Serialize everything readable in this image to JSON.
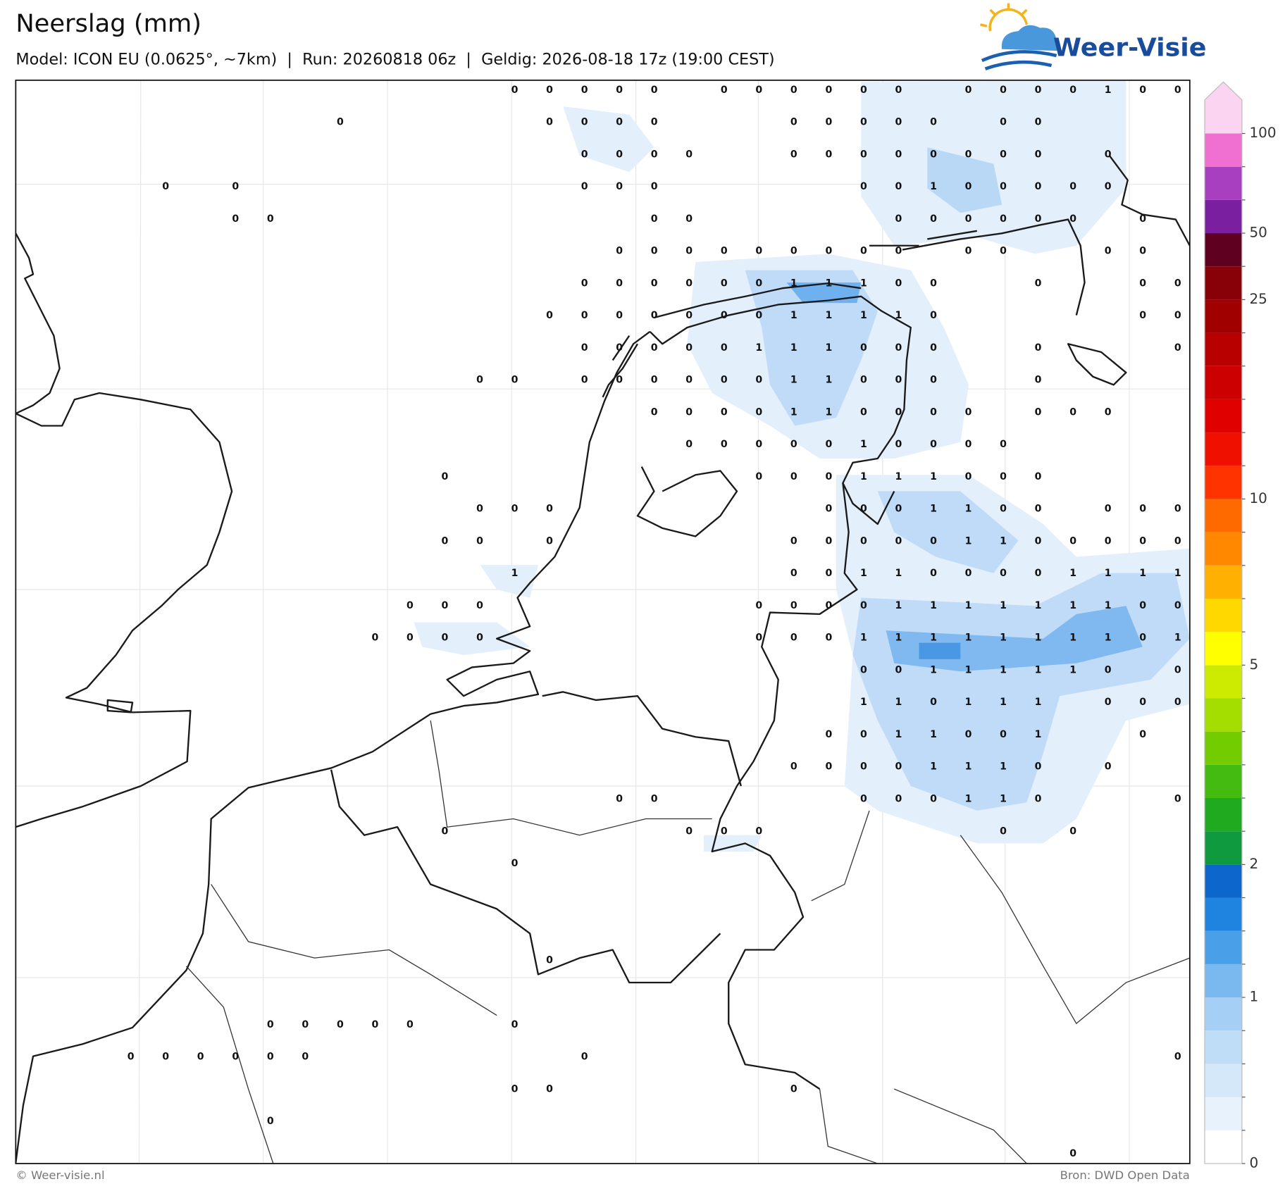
{
  "header": {
    "title": "Neerslag (mm)",
    "subtitle": "Model: ICON EU (0.0625°, ~7km)  |  Run: 20260818 06z  |  Geldig: 2026-08-18 17z (19:00 CEST)",
    "logo": "Weer-Visie"
  },
  "map": {
    "precip_labels": [
      [
        null,
        null,
        null,
        null,
        null,
        null,
        null,
        null,
        null,
        null,
        null,
        null,
        null,
        null,
        0,
        0,
        0,
        0,
        0,
        null,
        0,
        0,
        0,
        0,
        0,
        0,
        null,
        0,
        0,
        0,
        0,
        1,
        0,
        0
      ],
      [
        null,
        null,
        null,
        null,
        null,
        null,
        null,
        null,
        null,
        0,
        null,
        null,
        null,
        null,
        null,
        0,
        0,
        0,
        0,
        null,
        null,
        null,
        0,
        0,
        0,
        0,
        0,
        null,
        0,
        0,
        null,
        null,
        null,
        null
      ],
      [
        null,
        null,
        null,
        null,
        null,
        null,
        null,
        null,
        null,
        null,
        null,
        null,
        null,
        null,
        null,
        null,
        0,
        0,
        0,
        0,
        null,
        null,
        0,
        0,
        0,
        0,
        0,
        0,
        0,
        0,
        null,
        0,
        null,
        null
      ],
      [
        null,
        null,
        null,
        null,
        0,
        null,
        0,
        null,
        null,
        null,
        null,
        null,
        null,
        null,
        null,
        null,
        0,
        0,
        0,
        null,
        null,
        null,
        null,
        null,
        0,
        0,
        1,
        0,
        0,
        0,
        0,
        0,
        null,
        null
      ],
      [
        null,
        null,
        null,
        null,
        null,
        null,
        0,
        0,
        null,
        null,
        null,
        null,
        null,
        null,
        null,
        null,
        null,
        null,
        0,
        0,
        null,
        null,
        null,
        null,
        null,
        0,
        0,
        0,
        0,
        0,
        0,
        null,
        0,
        null
      ],
      [
        null,
        null,
        null,
        null,
        null,
        null,
        null,
        null,
        null,
        null,
        null,
        null,
        null,
        null,
        null,
        null,
        null,
        0,
        0,
        0,
        0,
        0,
        0,
        0,
        0,
        0,
        null,
        0,
        0,
        null,
        null,
        0,
        0,
        null
      ],
      [
        null,
        null,
        null,
        null,
        null,
        null,
        null,
        null,
        null,
        null,
        null,
        null,
        null,
        null,
        null,
        null,
        0,
        0,
        0,
        0,
        0,
        0,
        1,
        1,
        1,
        0,
        0,
        null,
        null,
        0,
        null,
        null,
        0,
        0
      ],
      [
        null,
        null,
        null,
        null,
        null,
        null,
        null,
        null,
        null,
        null,
        null,
        null,
        null,
        null,
        null,
        0,
        0,
        0,
        0,
        0,
        0,
        0,
        1,
        1,
        1,
        1,
        0,
        null,
        null,
        null,
        null,
        null,
        0,
        0
      ],
      [
        null,
        null,
        null,
        null,
        null,
        null,
        null,
        null,
        null,
        null,
        null,
        null,
        null,
        null,
        null,
        null,
        0,
        0,
        0,
        0,
        0,
        1,
        1,
        1,
        0,
        0,
        0,
        null,
        null,
        0,
        null,
        null,
        null,
        0
      ],
      [
        null,
        null,
        null,
        null,
        null,
        null,
        null,
        null,
        null,
        null,
        null,
        null,
        null,
        0,
        0,
        null,
        0,
        0,
        0,
        0,
        0,
        0,
        1,
        1,
        0,
        0,
        0,
        null,
        null,
        0,
        null,
        null,
        null,
        null
      ],
      [
        null,
        null,
        null,
        null,
        null,
        null,
        null,
        null,
        null,
        null,
        null,
        null,
        null,
        null,
        null,
        null,
        null,
        null,
        0,
        0,
        0,
        0,
        1,
        1,
        0,
        0,
        0,
        0,
        null,
        0,
        0,
        0,
        null,
        null
      ],
      [
        null,
        null,
        null,
        null,
        null,
        null,
        null,
        null,
        null,
        null,
        null,
        null,
        null,
        null,
        null,
        null,
        null,
        null,
        null,
        0,
        0,
        0,
        0,
        0,
        1,
        0,
        0,
        0,
        0,
        null,
        null,
        null,
        null,
        null
      ],
      [
        null,
        null,
        null,
        null,
        null,
        null,
        null,
        null,
        null,
        null,
        null,
        null,
        0,
        null,
        null,
        null,
        null,
        null,
        null,
        null,
        null,
        0,
        0,
        0,
        1,
        1,
        1,
        0,
        0,
        0,
        null,
        null,
        null,
        null
      ],
      [
        null,
        null,
        null,
        null,
        null,
        null,
        null,
        null,
        null,
        null,
        null,
        null,
        null,
        0,
        0,
        0,
        null,
        null,
        null,
        null,
        null,
        null,
        null,
        0,
        0,
        0,
        1,
        1,
        0,
        0,
        null,
        0,
        0,
        0
      ],
      [
        null,
        null,
        null,
        null,
        null,
        null,
        null,
        null,
        null,
        null,
        null,
        null,
        0,
        0,
        null,
        0,
        null,
        null,
        null,
        null,
        null,
        null,
        0,
        0,
        0,
        0,
        0,
        1,
        1,
        0,
        0,
        0,
        0,
        0
      ],
      [
        null,
        null,
        null,
        null,
        null,
        null,
        null,
        null,
        null,
        null,
        null,
        null,
        null,
        null,
        1,
        null,
        null,
        null,
        null,
        null,
        null,
        null,
        0,
        0,
        1,
        1,
        0,
        0,
        0,
        0,
        1,
        1,
        1,
        1
      ],
      [
        null,
        null,
        null,
        null,
        null,
        null,
        null,
        null,
        null,
        null,
        null,
        0,
        0,
        0,
        null,
        null,
        null,
        null,
        null,
        null,
        null,
        0,
        0,
        0,
        0,
        1,
        1,
        1,
        1,
        1,
        1,
        1,
        0,
        0
      ],
      [
        null,
        null,
        null,
        null,
        null,
        null,
        null,
        null,
        null,
        null,
        0,
        0,
        0,
        0,
        null,
        null,
        null,
        null,
        null,
        null,
        null,
        0,
        0,
        0,
        1,
        1,
        1,
        1,
        1,
        1,
        1,
        1,
        0,
        1
      ],
      [
        null,
        null,
        null,
        null,
        null,
        null,
        null,
        null,
        null,
        null,
        null,
        null,
        null,
        null,
        null,
        null,
        null,
        null,
        null,
        null,
        null,
        null,
        null,
        null,
        0,
        0,
        1,
        1,
        1,
        1,
        1,
        0,
        null,
        0
      ],
      [
        null,
        null,
        null,
        null,
        null,
        null,
        null,
        null,
        null,
        null,
        null,
        null,
        null,
        null,
        null,
        null,
        null,
        null,
        null,
        null,
        null,
        null,
        null,
        null,
        1,
        1,
        0,
        1,
        1,
        1,
        null,
        0,
        0,
        0
      ],
      [
        null,
        null,
        null,
        null,
        null,
        null,
        null,
        null,
        null,
        null,
        null,
        null,
        null,
        null,
        null,
        null,
        null,
        null,
        null,
        null,
        null,
        null,
        null,
        0,
        0,
        1,
        1,
        0,
        0,
        1,
        null,
        null,
        0,
        null
      ],
      [
        null,
        null,
        null,
        null,
        null,
        null,
        null,
        null,
        null,
        null,
        null,
        null,
        null,
        null,
        null,
        null,
        null,
        null,
        null,
        null,
        null,
        null,
        0,
        0,
        0,
        0,
        1,
        1,
        1,
        0,
        null,
        0,
        null,
        null
      ],
      [
        null,
        null,
        null,
        null,
        null,
        null,
        null,
        null,
        null,
        null,
        null,
        null,
        null,
        null,
        null,
        null,
        null,
        0,
        0,
        null,
        null,
        null,
        null,
        null,
        0,
        0,
        0,
        1,
        1,
        0,
        null,
        null,
        null,
        0
      ],
      [
        null,
        null,
        null,
        null,
        null,
        null,
        null,
        null,
        null,
        null,
        null,
        null,
        0,
        null,
        null,
        null,
        null,
        null,
        null,
        0,
        0,
        0,
        null,
        null,
        null,
        null,
        null,
        null,
        0,
        null,
        0,
        null,
        null,
        null
      ],
      [
        null,
        null,
        null,
        null,
        null,
        null,
        null,
        null,
        null,
        null,
        null,
        null,
        null,
        null,
        0,
        null,
        null,
        null,
        null,
        null,
        null,
        null,
        null,
        null,
        null,
        null,
        null,
        null,
        null,
        null,
        null,
        null,
        null,
        null
      ],
      [
        null,
        null,
        null,
        null,
        null,
        null,
        null,
        null,
        null,
        null,
        null,
        null,
        null,
        null,
        null,
        null,
        null,
        null,
        null,
        null,
        null,
        null,
        null,
        null,
        null,
        null,
        null,
        null,
        null,
        null,
        null,
        null,
        null,
        null
      ],
      [
        null,
        null,
        null,
        null,
        null,
        null,
        null,
        null,
        null,
        null,
        null,
        null,
        null,
        null,
        null,
        null,
        null,
        null,
        null,
        null,
        null,
        null,
        null,
        null,
        null,
        null,
        null,
        null,
        null,
        null,
        null,
        null,
        null,
        null
      ],
      [
        null,
        null,
        null,
        null,
        null,
        null,
        null,
        null,
        null,
        null,
        null,
        null,
        null,
        null,
        null,
        0,
        null,
        null,
        null,
        null,
        null,
        null,
        null,
        null,
        null,
        null,
        null,
        null,
        null,
        null,
        null,
        null,
        null,
        null
      ],
      [
        null,
        null,
        null,
        null,
        null,
        null,
        null,
        null,
        null,
        null,
        null,
        null,
        null,
        null,
        null,
        null,
        null,
        null,
        null,
        null,
        null,
        null,
        null,
        null,
        null,
        null,
        null,
        null,
        null,
        null,
        null,
        null,
        null,
        null
      ],
      [
        null,
        null,
        null,
        null,
        null,
        null,
        null,
        0,
        0,
        0,
        0,
        0,
        null,
        null,
        0,
        null,
        null,
        null,
        null,
        null,
        null,
        null,
        null,
        null,
        null,
        null,
        null,
        null,
        null,
        null,
        null,
        null,
        null,
        null
      ],
      [
        null,
        null,
        null,
        0,
        0,
        0,
        0,
        0,
        0,
        null,
        null,
        null,
        null,
        null,
        null,
        null,
        0,
        null,
        null,
        null,
        null,
        null,
        null,
        null,
        null,
        null,
        null,
        null,
        null,
        null,
        null,
        null,
        null,
        0
      ],
      [
        null,
        null,
        null,
        null,
        null,
        null,
        null,
        null,
        null,
        null,
        null,
        null,
        null,
        null,
        0,
        0,
        null,
        null,
        null,
        null,
        null,
        null,
        0,
        null,
        null,
        null,
        null,
        null,
        null,
        null,
        null,
        null,
        null,
        null
      ],
      [
        null,
        null,
        null,
        null,
        null,
        null,
        null,
        0,
        null,
        null,
        null,
        null,
        null,
        null,
        null,
        null,
        null,
        null,
        null,
        null,
        null,
        null,
        null,
        null,
        null,
        null,
        null,
        null,
        null,
        null,
        null,
        null,
        null,
        null
      ],
      [
        null,
        null,
        null,
        null,
        null,
        null,
        null,
        null,
        null,
        null,
        null,
        null,
        null,
        null,
        null,
        null,
        null,
        null,
        null,
        null,
        null,
        null,
        null,
        null,
        null,
        null,
        null,
        null,
        null,
        null,
        0,
        null,
        null,
        null
      ]
    ]
  },
  "colorbar": {
    "levels": [
      0,
      0.2,
      0.4,
      0.6,
      0.8,
      1,
      1.25,
      1.5,
      1.75,
      2,
      2.5,
      3,
      3.5,
      4,
      4.5,
      5,
      6,
      7,
      8,
      9,
      10,
      12.5,
      15,
      17.5,
      20,
      22.5,
      25,
      37.5,
      50,
      66,
      83,
      100
    ],
    "colors": [
      "#ffffff",
      "#e8f2fc",
      "#d4e8fa",
      "#c0ddf8",
      "#a6cff6",
      "#7ab8f0",
      "#4aa0e8",
      "#1f84e0",
      "#0c66cc",
      "#109a40",
      "#20aa20",
      "#44bb10",
      "#72cc00",
      "#a4dd00",
      "#cceb00",
      "#ffff00",
      "#ffd800",
      "#ffb000",
      "#ff8800",
      "#ff6a00",
      "#ff3300",
      "#f01000",
      "#e00000",
      "#cc0000",
      "#b80000",
      "#a00000",
      "#880008",
      "#600020",
      "#7a1fa0",
      "#a83ec0",
      "#ef70d0"
    ],
    "extend_color": "#fad4f0",
    "ticks": [
      0,
      1,
      2,
      5,
      10,
      25,
      50,
      100
    ]
  },
  "footer": {
    "credit": "© Weer-visie.nl",
    "source": "Bron: DWD Open Data"
  }
}
